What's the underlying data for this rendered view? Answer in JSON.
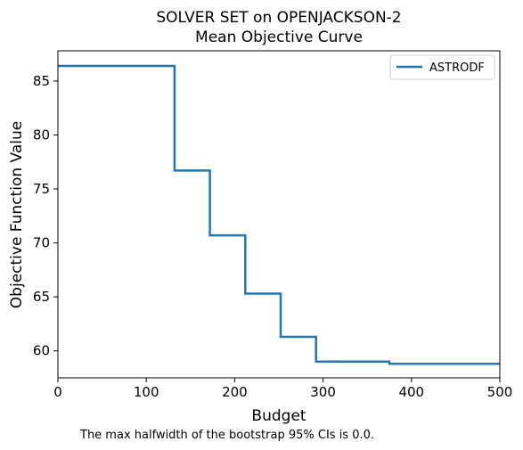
{
  "chart_data": {
    "type": "line",
    "title_line1": "SOLVER SET on OPENJACKSON-2",
    "title_line2": "Mean Objective Curve",
    "xlabel": "Budget",
    "ylabel": "Objective Function Value",
    "xlim": [
      0,
      500
    ],
    "ylim": [
      57.5,
      87.8
    ],
    "xticks": [
      0,
      100,
      200,
      300,
      400,
      500
    ],
    "yticks": [
      60,
      65,
      70,
      75,
      80,
      85
    ],
    "grid": false,
    "legend_position": "top-right",
    "line_style": "step",
    "series": [
      {
        "name": "ASTRODF",
        "color": "#1f77b4",
        "points": [
          [
            0,
            86.4
          ],
          [
            132,
            86.4
          ],
          [
            132,
            76.7
          ],
          [
            172,
            76.7
          ],
          [
            172,
            70.7
          ],
          [
            212,
            70.7
          ],
          [
            212,
            65.3
          ],
          [
            252,
            65.3
          ],
          [
            252,
            61.3
          ],
          [
            292,
            61.3
          ],
          [
            292,
            59.0
          ],
          [
            375,
            59.0
          ],
          [
            375,
            58.8
          ],
          [
            500,
            58.8
          ]
        ]
      }
    ],
    "footnote": "The max halfwidth of the bootstrap 95% CIs is 0.0."
  }
}
